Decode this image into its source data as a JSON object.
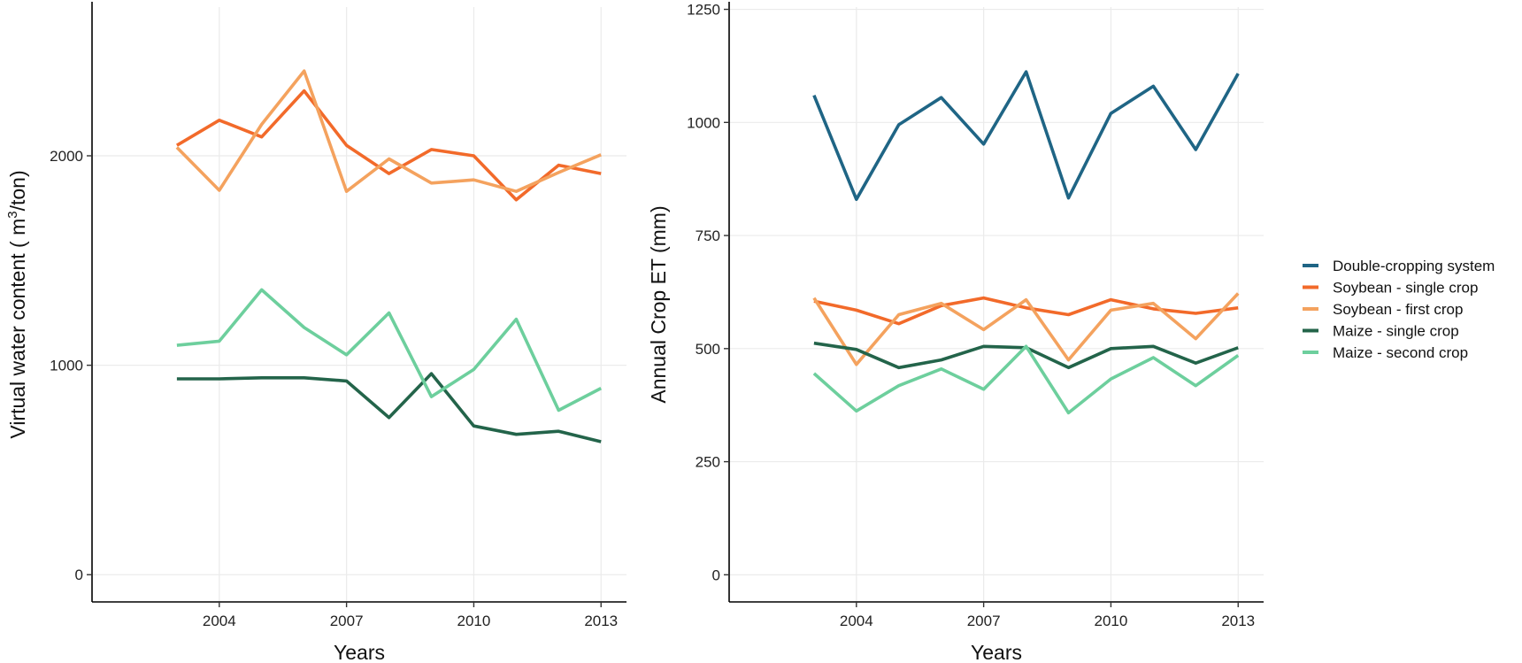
{
  "chart_data": [
    {
      "type": "line",
      "title": "",
      "xlabel": "Years",
      "ylabel_parts": [
        "Virtual water content ( m",
        "3",
        "/ton)"
      ],
      "x": [
        2003,
        2004,
        2005,
        2006,
        2007,
        2008,
        2009,
        2010,
        2011,
        2012,
        2013
      ],
      "xlim": [
        2001.0,
        2013.6
      ],
      "ylim": [
        -130,
        2710
      ],
      "xticks": [
        2004,
        2007,
        2010,
        2013
      ],
      "yticks": [
        0,
        1000,
        2000
      ],
      "grid": true,
      "series": [
        {
          "key": "soy_single",
          "values": [
            2050,
            2170,
            2090,
            2310,
            2050,
            1915,
            2030,
            2000,
            1790,
            1955,
            1915
          ]
        },
        {
          "key": "soy_first",
          "values": [
            2040,
            1835,
            2150,
            2405,
            1830,
            1985,
            1870,
            1885,
            1830,
            1920,
            2005
          ]
        },
        {
          "key": "maize_single",
          "values": [
            935,
            935,
            940,
            940,
            925,
            750,
            960,
            710,
            670,
            685,
            635
          ]
        },
        {
          "key": "maize_second",
          "values": [
            1095,
            1115,
            1360,
            1180,
            1050,
            1250,
            850,
            980,
            1220,
            785,
            890
          ]
        }
      ]
    },
    {
      "type": "line",
      "title": "",
      "xlabel": "Years",
      "ylabel": "Annual Crop ET (mm)",
      "x": [
        2003,
        2004,
        2005,
        2006,
        2007,
        2008,
        2009,
        2010,
        2011,
        2012,
        2013
      ],
      "xlim": [
        2001.0,
        2013.6
      ],
      "ylim": [
        -60,
        1255
      ],
      "xticks": [
        2004,
        2007,
        2010,
        2013
      ],
      "yticks": [
        0,
        250,
        500,
        750,
        1000,
        1250
      ],
      "grid": true,
      "series": [
        {
          "key": "double",
          "values": [
            1060,
            830,
            995,
            1055,
            952,
            1112,
            833,
            1020,
            1080,
            940,
            1108
          ]
        },
        {
          "key": "soy_single",
          "values": [
            605,
            585,
            555,
            595,
            612,
            590,
            575,
            608,
            588,
            578,
            590
          ]
        },
        {
          "key": "soy_first",
          "values": [
            612,
            465,
            575,
            600,
            542,
            608,
            475,
            585,
            600,
            522,
            622
          ]
        },
        {
          "key": "maize_single",
          "values": [
            512,
            498,
            458,
            475,
            505,
            502,
            458,
            500,
            505,
            468,
            502
          ]
        },
        {
          "key": "maize_second",
          "values": [
            445,
            362,
            418,
            455,
            410,
            505,
            358,
            433,
            480,
            418,
            485
          ]
        }
      ]
    }
  ],
  "legend": {
    "placement": "right",
    "items": [
      {
        "key": "double",
        "label": "Double-cropping system",
        "color": "#1f6585"
      },
      {
        "key": "soy_single",
        "label": "Soybean - single crop",
        "color": "#f26a2a"
      },
      {
        "key": "soy_first",
        "label": "Soybean - first crop",
        "color": "#f4a25e"
      },
      {
        "key": "maize_single",
        "label": "Maize - single crop",
        "color": "#23644a"
      },
      {
        "key": "maize_second",
        "label": "Maize - second crop",
        "color": "#6dcf9d"
      }
    ]
  }
}
